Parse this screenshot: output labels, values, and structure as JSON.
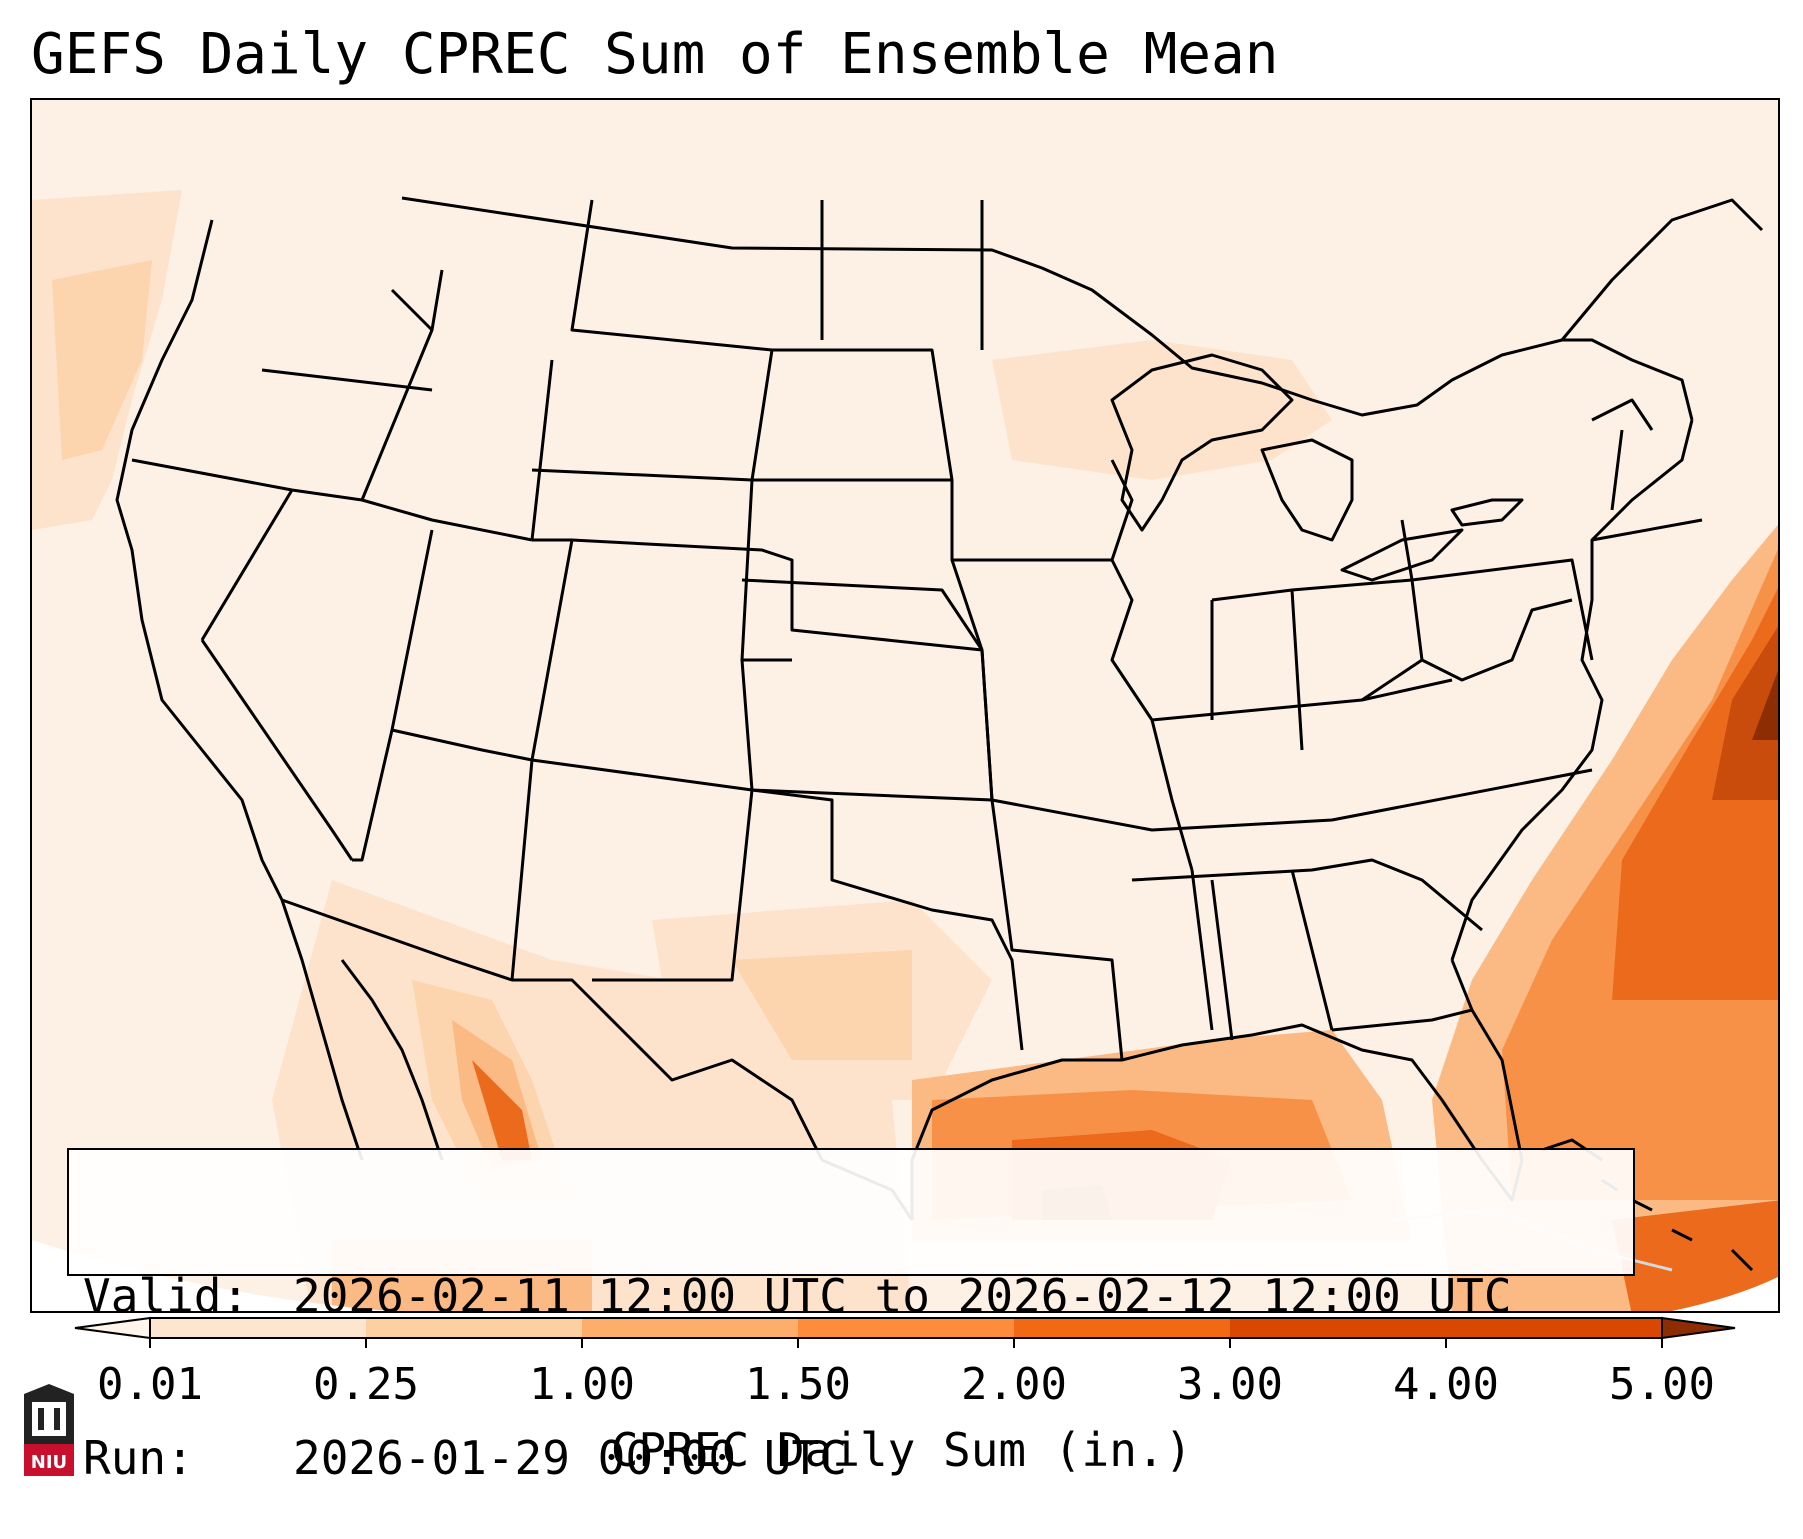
{
  "title": "GEFS Daily CPREC Sum of Ensemble Mean",
  "info": {
    "valid_label": "Valid:",
    "valid_value": "2026-02-11 12:00 UTC to 2026-02-12 12:00 UTC",
    "run_label": "Run:",
    "run_value": "2026-01-29 00:00 UTC"
  },
  "colorbar": {
    "label": "CPREC Daily Sum (in.)",
    "ticks": [
      "0.01",
      "0.25",
      "1.00",
      "1.50",
      "2.00",
      "3.00",
      "4.00",
      "5.00"
    ],
    "colors": [
      "#fff5eb",
      "#fee6ce",
      "#fdd0a2",
      "#fdae6b",
      "#fd8d3c",
      "#f16913",
      "#d94801",
      "#8c2d04"
    ]
  },
  "logo": {
    "text": "NIU",
    "color": "#c8102e"
  },
  "map_colors": {
    "light": "#fdf0e4",
    "pale": "#fde3cb",
    "tan": "#fcd4ae",
    "mid": "#fbb983",
    "orange": "#f89148",
    "deep": "#ec6a1c",
    "dark": "#c94c0c",
    "darkest": "#8c2d04"
  }
}
